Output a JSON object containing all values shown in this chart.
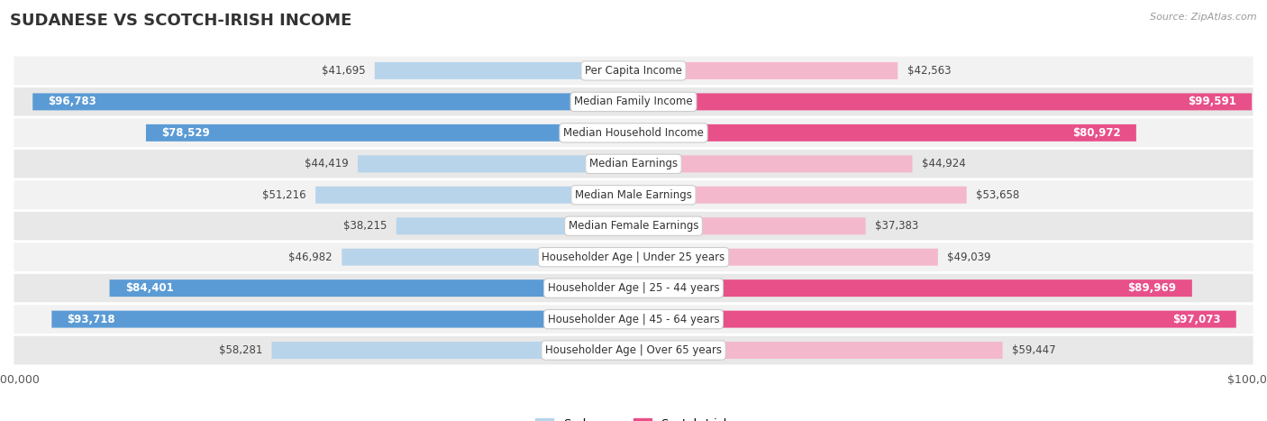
{
  "title": "SUDANESE VS SCOTCH-IRISH INCOME",
  "source": "Source: ZipAtlas.com",
  "categories": [
    "Per Capita Income",
    "Median Family Income",
    "Median Household Income",
    "Median Earnings",
    "Median Male Earnings",
    "Median Female Earnings",
    "Householder Age | Under 25 years",
    "Householder Age | 25 - 44 years",
    "Householder Age | 45 - 64 years",
    "Householder Age | Over 65 years"
  ],
  "sudanese_values": [
    41695,
    96783,
    78529,
    44419,
    51216,
    38215,
    46982,
    84401,
    93718,
    58281
  ],
  "scotchirish_values": [
    42563,
    99591,
    80972,
    44924,
    53658,
    37383,
    49039,
    89969,
    97073,
    59447
  ],
  "sudanese_labels": [
    "$41,695",
    "$96,783",
    "$78,529",
    "$44,419",
    "$51,216",
    "$38,215",
    "$46,982",
    "$84,401",
    "$93,718",
    "$58,281"
  ],
  "scotchirish_labels": [
    "$42,563",
    "$99,591",
    "$80,972",
    "$44,924",
    "$53,658",
    "$37,383",
    "$49,039",
    "$89,969",
    "$97,073",
    "$59,447"
  ],
  "sudanese_light_color": "#b8d4ea",
  "sudanese_dark_color": "#5b9bd5",
  "scotchirish_light_color": "#f4b8cc",
  "scotchirish_dark_color": "#e8508a",
  "max_value": 100000,
  "bg_color": "#ffffff",
  "row_bg_light": "#f2f2f2",
  "row_bg_dark": "#e8e8e8",
  "bar_height": 0.55,
  "title_fontsize": 13,
  "label_fontsize": 8.5,
  "value_fontsize": 8.5,
  "threshold_dark": 65000
}
